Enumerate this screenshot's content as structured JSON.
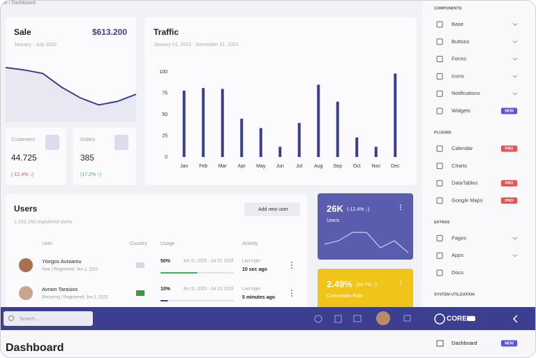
{
  "breadcrumb": "Home / Dashboard",
  "sale": {
    "title": "Sale",
    "value": "$613.200",
    "period": "January - July 2022",
    "chart": {
      "type": "area",
      "values": [
        92,
        88,
        82,
        59,
        41,
        29,
        35,
        47
      ],
      "ylim": [
        0,
        100
      ],
      "color": "#3c3f8f"
    }
  },
  "customers": {
    "label": "Customers",
    "value": "44.725",
    "change": "(-12.4% ↓)"
  },
  "orders": {
    "label": "Orders",
    "value": "385",
    "change": "(17.2% ↑)"
  },
  "traffic": {
    "type": "bar",
    "title": "Traffic",
    "subtitle": "January 01, 2021 - December 31, 2021",
    "categories": [
      "Jan",
      "Feb",
      "Mar",
      "Apr",
      "May",
      "Jun",
      "Jul",
      "Aug",
      "Sep",
      "Oct",
      "Nov",
      "Dec"
    ],
    "values": [
      78,
      81,
      80,
      45,
      34,
      12,
      40,
      85,
      65,
      23,
      12,
      98
    ],
    "color": "#3c3f8f",
    "ylim": [
      0,
      100
    ],
    "yticks": [
      0,
      25,
      50,
      75,
      100
    ]
  },
  "users": {
    "title": "Users",
    "subtitle": "1.232.150 registered users",
    "button": "Add new user",
    "columns": [
      "User",
      "Country",
      "Usage",
      "Activity"
    ],
    "rows": [
      {
        "name": "Yiorgos Avraamu",
        "info": "New | Registered: Jan 1, 2023",
        "usage": {
          "value": 50,
          "label": "50%"
        },
        "usage_color": "#2eb85c",
        "period": "Jun 11, 2023 - Jul 10, 2023",
        "activity_label": "Last login",
        "activity": "10 sec ago"
      },
      {
        "name": "Avram Tarasios",
        "info": "Recurring | Registered: Jan 1, 2023",
        "usage": {
          "value": 10,
          "label": "10%"
        },
        "usage_color": "#3c3f8f",
        "period": "Jun 11, 2023 - Jul 10, 2023",
        "activity_label": "Last login",
        "activity": "5 minutes ago"
      }
    ]
  },
  "stats": [
    {
      "value": "26K",
      "change": "(-12.4% ↓)",
      "label": "Users",
      "color": "#5a5cae",
      "chart": {
        "type": "line",
        "values": [
          40,
          50,
          74,
          74,
          30,
          50,
          16
        ],
        "ylim": [
          0,
          100
        ]
      }
    },
    {
      "value": "2.49%",
      "change": "(84.7% ↑)",
      "label": "Conversion Rate",
      "color": "#f0c419"
    }
  ],
  "topbar": {
    "search": "Search...",
    "brand": "COREUI"
  },
  "page_title": "Dashboard",
  "sidebar": {
    "sections": [
      {
        "title": "COMPONENTS",
        "items": [
          {
            "label": "Base",
            "expandable": true
          },
          {
            "label": "Buttons",
            "expandable": true
          },
          {
            "label": "Forms",
            "expandable": true
          },
          {
            "label": "Icons",
            "expandable": true
          },
          {
            "label": "Notifications",
            "expandable": true
          },
          {
            "label": "Widgets",
            "badge": "NEW",
            "badge_color": "#5856d6"
          }
        ]
      },
      {
        "title": "PLUGINS",
        "items": [
          {
            "label": "Calendar",
            "badge": "PRO",
            "badge_color": "#e55353"
          },
          {
            "label": "Charts"
          },
          {
            "label": "DataTables",
            "badge": "PRO",
            "badge_color": "#e55353"
          },
          {
            "label": "Google Maps",
            "badge": "PRO",
            "badge_color": "#e55353"
          }
        ]
      },
      {
        "title": "EXTRAS",
        "items": [
          {
            "label": "Pages",
            "expandable": true
          },
          {
            "label": "Apps",
            "expandable": true
          },
          {
            "label": "Docs"
          }
        ]
      },
      {
        "title": "SYSTEM UTILIZATION",
        "items": []
      }
    ],
    "footer_item": {
      "label": "Dashboard",
      "badge": "NEW",
      "badge_color": "#5856d6"
    }
  }
}
